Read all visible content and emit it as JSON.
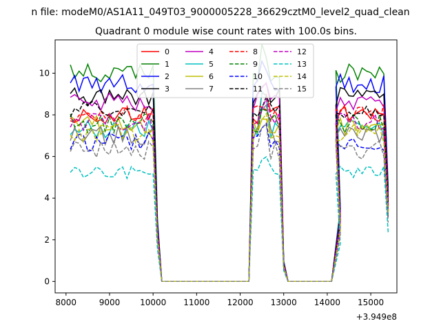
{
  "chart_data": {
    "type": "line",
    "suptitle": "n file: modeM0/AS1A11_049T03_9000005228_36629cztM0_level2_quad_clean",
    "title": "Quadrant 0 module wise count rates with 100.0s bins.",
    "xlabel": "",
    "ylabel": "",
    "offset_text": "+3.949e8",
    "xlim": [
      7750,
      15600
    ],
    "ylim": [
      -0.55,
      11.6
    ],
    "xticks": [
      8000,
      9000,
      10000,
      11000,
      12000,
      13000,
      14000,
      15000
    ],
    "xtick_labels": [
      "8000",
      "9000",
      "10000",
      "11000",
      "12000",
      "13000",
      "14000",
      "15000"
    ],
    "yticks": [
      0,
      2,
      4,
      6,
      8,
      10
    ],
    "ytick_labels": [
      "0",
      "2",
      "4",
      "6",
      "8",
      "10"
    ],
    "grid": false,
    "legend_position": "top-center",
    "legend_columns": 4,
    "segment_starts": [
      8100,
      12300,
      14200
    ],
    "segment_ends": [
      10000,
      12900,
      15300
    ],
    "falloffs": [
      {
        "x": 10100,
        "factor": 0.3
      },
      {
        "x": 13000,
        "factor": 0.1
      },
      {
        "x": 14300,
        "factor": 0.35
      },
      {
        "x": 15400,
        "factor": 0.45
      }
    ],
    "gap_x_ranges": [
      [
        10200,
        12200
      ],
      [
        13100,
        14100
      ]
    ],
    "gap_value": 0,
    "series": [
      {
        "name": "0",
        "color": "#ff0000",
        "dash": false,
        "level": 8.0,
        "peak": 9.4
      },
      {
        "name": "1",
        "color": "#008000",
        "dash": false,
        "level": 10.0,
        "peak": 11.0
      },
      {
        "name": "2",
        "color": "#0000ff",
        "dash": false,
        "level": 9.5,
        "peak": 10.3
      },
      {
        "name": "3",
        "color": "#000000",
        "dash": false,
        "level": 8.9,
        "peak": 9.5
      },
      {
        "name": "4",
        "color": "#bf00bf",
        "dash": false,
        "level": 8.6,
        "peak": 9.7
      },
      {
        "name": "5",
        "color": "#00bfbf",
        "dash": false,
        "level": 7.3,
        "peak": 8.8
      },
      {
        "name": "6",
        "color": "#bfbf00",
        "dash": false,
        "level": 7.5,
        "peak": 8.2
      },
      {
        "name": "7",
        "color": "#808080",
        "dash": false,
        "level": 7.0,
        "peak": 8.6
      },
      {
        "name": "8",
        "color": "#ff0000",
        "dash": true,
        "level": 8.1,
        "peak": 8.6
      },
      {
        "name": "9",
        "color": "#008000",
        "dash": true,
        "level": 7.6,
        "peak": 8.3
      },
      {
        "name": "10",
        "color": "#0000ff",
        "dash": true,
        "level": 6.7,
        "peak": 7.5
      },
      {
        "name": "11",
        "color": "#000000",
        "dash": true,
        "level": 8.2,
        "peak": 8.7
      },
      {
        "name": "12",
        "color": "#bf00bf",
        "dash": true,
        "level": 7.7,
        "peak": 8.5
      },
      {
        "name": "13",
        "color": "#00bfbf",
        "dash": true,
        "level": 5.2,
        "peak": 6.1
      },
      {
        "name": "14",
        "color": "#bfbf00",
        "dash": true,
        "level": 7.1,
        "peak": 8.0
      },
      {
        "name": "15",
        "color": "#808080",
        "dash": true,
        "level": 6.3,
        "peak": 7.3
      }
    ]
  }
}
